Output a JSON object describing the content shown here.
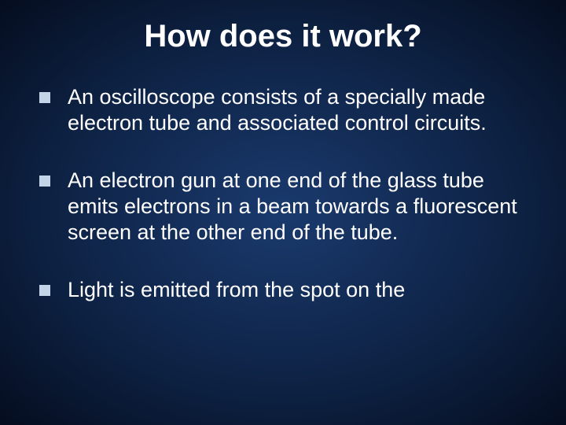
{
  "slide": {
    "title": "How does it work?",
    "bullets": [
      {
        "text": "An oscilloscope consists of a specially made electron tube and associated control circuits."
      },
      {
        "text": "An electron gun at one end of the glass tube emits electrons in a beam towards a fluorescent screen at the other end of the tube."
      },
      {
        "text": "Light is emitted from the spot on the"
      }
    ],
    "style": {
      "background_gradient": [
        "#1a3a6e",
        "#0d2142",
        "#050d1f"
      ],
      "title_color": "#ffffff",
      "title_fontsize": 40,
      "bullet_marker_color": "#c4d4e8",
      "bullet_marker_size": 14,
      "body_text_color": "#ffffff",
      "body_fontsize": 27
    }
  }
}
